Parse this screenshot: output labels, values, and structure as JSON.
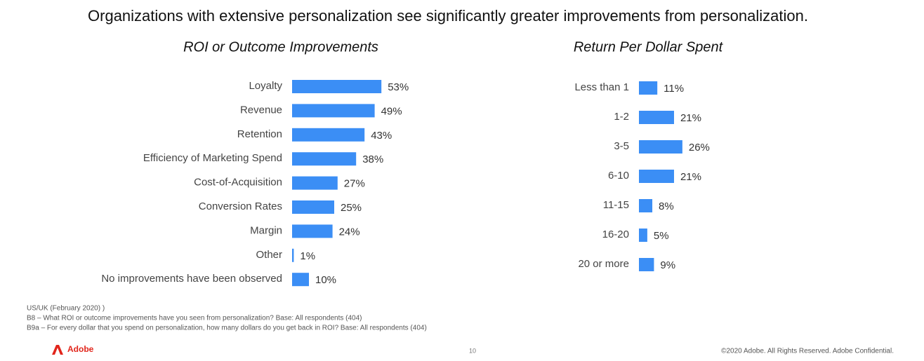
{
  "slide": {
    "title": "Organizations with extensive personalization see significantly greater improvements from personalization.",
    "footnotes": [
      "US/UK (February 2020) )",
      "B8 – What ROI or outcome improvements have you seen from personalization? Base: All respondents (404)",
      "B9a – For every dollar that you spend on personalization, how many dollars do you get back in ROI? Base: All respondents (404)"
    ],
    "logo": "Adobe",
    "page_number": "10",
    "copyright": "©2020 Adobe. All Rights Reserved. Adobe Confidential."
  },
  "chart_data": [
    {
      "type": "bar",
      "orientation": "horizontal",
      "title": "ROI or Outcome Improvements",
      "color": "#3b8ef5",
      "categories": [
        "Loyalty",
        "Revenue",
        "Retention",
        "Efficiency of Marketing Spend",
        "Cost-of-Acquisition",
        "Conversion Rates",
        "Margin",
        "Other",
        "No improvements have been observed"
      ],
      "values": [
        53,
        49,
        43,
        38,
        27,
        25,
        24,
        1,
        10
      ],
      "value_labels": [
        "53%",
        "49%",
        "43%",
        "38%",
        "27%",
        "25%",
        "24%",
        "1%",
        "10%"
      ]
    },
    {
      "type": "bar",
      "orientation": "horizontal",
      "title": "Return Per Dollar Spent",
      "color": "#3b8ef5",
      "categories": [
        "Less than 1",
        "1-2",
        "3-5",
        "6-10",
        "11-15",
        "16-20",
        "20 or more"
      ],
      "values": [
        11,
        21,
        26,
        21,
        8,
        5,
        9
      ],
      "value_labels": [
        "11%",
        "21%",
        "26%",
        "21%",
        "8%",
        "5%",
        "9%"
      ]
    }
  ]
}
